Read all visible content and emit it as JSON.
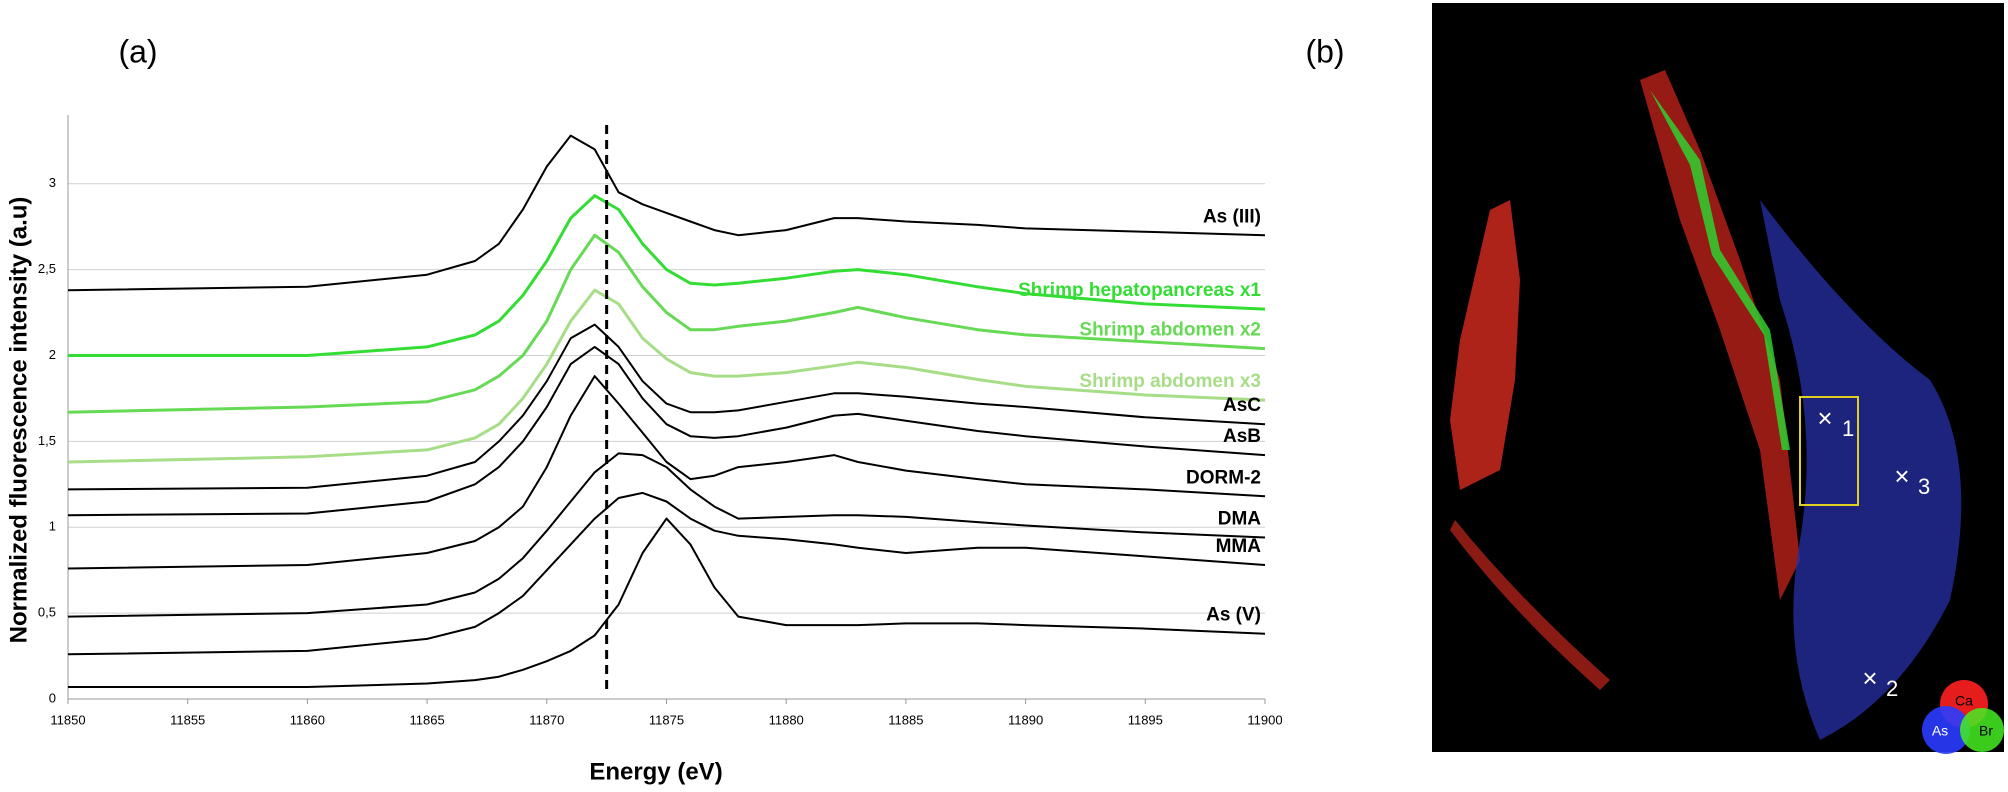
{
  "chart_data": {
    "type": "line",
    "panel_label": "(a)",
    "x_label": "Energy (eV)",
    "y_label": "Normalized fluorescence intensity (a.u)",
    "x": [
      11850,
      11860,
      11865,
      11867,
      11868,
      11869,
      11870,
      11871,
      11872,
      11873,
      11874,
      11875,
      11876,
      11877,
      11878,
      11880,
      11882,
      11883,
      11885,
      11888,
      11890,
      11895,
      11900
    ],
    "series": [
      {
        "name": "As (III)",
        "color": "#000000",
        "values": [
          2.38,
          2.4,
          2.47,
          2.55,
          2.65,
          2.85,
          3.1,
          3.28,
          3.2,
          2.95,
          2.88,
          2.83,
          2.78,
          2.73,
          2.7,
          2.73,
          2.8,
          2.8,
          2.78,
          2.76,
          2.74,
          2.72,
          2.7
        ]
      },
      {
        "name": "Shrimp hepatopancreas x1",
        "color": "#33dd33",
        "values": [
          2.0,
          2.0,
          2.05,
          2.12,
          2.2,
          2.35,
          2.55,
          2.8,
          2.93,
          2.85,
          2.65,
          2.5,
          2.42,
          2.41,
          2.42,
          2.45,
          2.49,
          2.5,
          2.47,
          2.4,
          2.36,
          2.3,
          2.27
        ]
      },
      {
        "name": "Shrimp abdomen x2",
        "color": "#66d955",
        "values": [
          1.67,
          1.7,
          1.73,
          1.8,
          1.88,
          2.0,
          2.2,
          2.5,
          2.7,
          2.6,
          2.4,
          2.25,
          2.15,
          2.15,
          2.17,
          2.2,
          2.25,
          2.28,
          2.22,
          2.15,
          2.12,
          2.08,
          2.04
        ]
      },
      {
        "name": "Shrimp abdomen x3",
        "color": "#a8dd88",
        "values": [
          1.38,
          1.41,
          1.45,
          1.52,
          1.6,
          1.75,
          1.95,
          2.2,
          2.38,
          2.3,
          2.1,
          1.98,
          1.9,
          1.88,
          1.88,
          1.9,
          1.94,
          1.96,
          1.93,
          1.86,
          1.82,
          1.77,
          1.74
        ]
      },
      {
        "name": "AsC",
        "color": "#000000",
        "values": [
          1.22,
          1.23,
          1.3,
          1.38,
          1.5,
          1.65,
          1.85,
          2.1,
          2.18,
          2.05,
          1.85,
          1.72,
          1.67,
          1.67,
          1.68,
          1.73,
          1.78,
          1.78,
          1.76,
          1.72,
          1.7,
          1.64,
          1.6
        ]
      },
      {
        "name": "AsB",
        "color": "#000000",
        "values": [
          1.07,
          1.08,
          1.15,
          1.25,
          1.35,
          1.5,
          1.7,
          1.95,
          2.05,
          1.95,
          1.75,
          1.6,
          1.53,
          1.52,
          1.53,
          1.58,
          1.65,
          1.66,
          1.62,
          1.56,
          1.53,
          1.47,
          1.42
        ]
      },
      {
        "name": "DORM-2",
        "color": "#000000",
        "values": [
          0.76,
          0.78,
          0.85,
          0.92,
          1.0,
          1.12,
          1.35,
          1.65,
          1.88,
          1.72,
          1.55,
          1.38,
          1.28,
          1.3,
          1.35,
          1.38,
          1.42,
          1.38,
          1.33,
          1.28,
          1.25,
          1.22,
          1.18
        ]
      },
      {
        "name": "DMA",
        "color": "#000000",
        "values": [
          0.48,
          0.5,
          0.55,
          0.62,
          0.7,
          0.82,
          0.98,
          1.15,
          1.32,
          1.43,
          1.42,
          1.35,
          1.22,
          1.12,
          1.05,
          1.06,
          1.07,
          1.07,
          1.06,
          1.03,
          1.01,
          0.97,
          0.94
        ]
      },
      {
        "name": "MMA",
        "color": "#000000",
        "values": [
          0.26,
          0.28,
          0.35,
          0.42,
          0.5,
          0.6,
          0.75,
          0.9,
          1.05,
          1.17,
          1.2,
          1.15,
          1.05,
          0.98,
          0.95,
          0.93,
          0.9,
          0.88,
          0.85,
          0.88,
          0.88,
          0.83,
          0.78
        ]
      },
      {
        "name": "As (V)",
        "color": "#000000",
        "values": [
          0.07,
          0.07,
          0.09,
          0.11,
          0.13,
          0.17,
          0.22,
          0.28,
          0.37,
          0.55,
          0.85,
          1.05,
          0.9,
          0.65,
          0.48,
          0.43,
          0.43,
          0.43,
          0.44,
          0.44,
          0.43,
          0.41,
          0.38
        ]
      }
    ],
    "reference_x": 11872.5,
    "xlim": [
      11850,
      11900
    ],
    "xticks": [
      11850,
      11855,
      11860,
      11865,
      11870,
      11875,
      11880,
      11885,
      11890,
      11895,
      11900
    ],
    "ylim": [
      0,
      3.4
    ],
    "yticks": [
      0,
      {
        "value": 0.5,
        "label": "0,5"
      },
      1,
      {
        "value": 1.5,
        "label": "1,5"
      },
      2,
      {
        "value": 2.5,
        "label": "2,5"
      },
      3
    ],
    "grid": true
  },
  "panel_b": {
    "panel_label": "(b)",
    "markers": [
      "1",
      "2",
      "3"
    ],
    "legend": [
      "Ca",
      "As",
      "Br"
    ]
  }
}
